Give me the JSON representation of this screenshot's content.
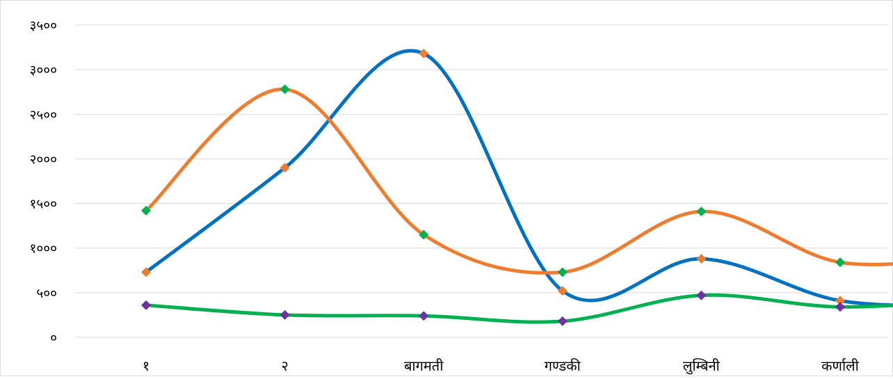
{
  "chart_data": {
    "type": "line",
    "categories": [
      "१",
      "२",
      "बागमती",
      "गण्डकी",
      "लुम्बिनी",
      "कर्णाली"
    ],
    "y_tick_labels": [
      "०",
      "५००",
      "१०००",
      "१५००",
      "२०००",
      "२५००",
      "३०००",
      "३५००"
    ],
    "ylim": [
      0,
      3500
    ],
    "y_step": 500,
    "grid": true,
    "legend": "none",
    "smoothed": true,
    "series": [
      {
        "color": "#0070C0",
        "marker_color": "#ED7D31",
        "values": [
          730,
          1900,
          3180,
          520,
          880,
          410
        ],
        "trailing_value": 360
      },
      {
        "color": "#ED7D31",
        "marker_color": "#00B050",
        "values": [
          1420,
          2780,
          1150,
          730,
          1410,
          840
        ],
        "trailing_value": 920
      },
      {
        "color": "#00B050",
        "marker_color": "#7030A0",
        "values": [
          360,
          250,
          240,
          180,
          470,
          340
        ],
        "trailing_value": 430
      }
    ]
  }
}
